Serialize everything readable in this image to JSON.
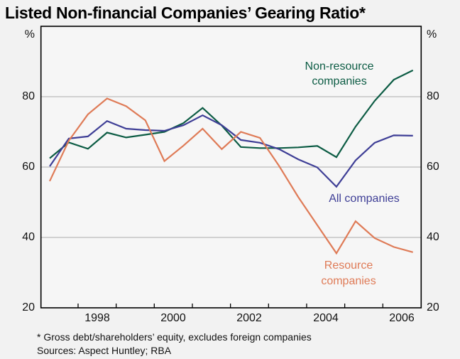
{
  "title": "Listed Non-financial Companies’ Gearing Ratio*",
  "y_axis": {
    "unit_left": "%",
    "unit_right": "%",
    "ticks": [
      "80",
      "60",
      "40",
      "20"
    ]
  },
  "x_axis": {
    "ticks": [
      "1998",
      "2000",
      "2002",
      "2004",
      "2006"
    ]
  },
  "series_labels": {
    "non_resource": {
      "line1": "Non-resource",
      "line2": "companies"
    },
    "all": {
      "label": "All companies"
    },
    "resource": {
      "line1": "Resource",
      "line2": "companies"
    }
  },
  "footnotes": {
    "note": "* Gross debt/shareholders’ equity, excludes foreign companies",
    "sources": "Sources: Aspect Huntley; RBA"
  },
  "colors": {
    "non_resource": "#0c5c44",
    "all": "#3e3e96",
    "resource": "#df7b57",
    "grid": "#bbbbbb",
    "frame": "#000000",
    "plot_bg": "#f6f6f6"
  },
  "chart_data": {
    "type": "line",
    "title": "Listed Non-financial Companies’ Gearing Ratio*",
    "ylabel": "%  (gross debt / shareholders’ equity)",
    "ylim": [
      20,
      100
    ],
    "y_gridlines": [
      40,
      60,
      80
    ],
    "grid": true,
    "legend_position": "inline-annotations",
    "x_unit": "half-year",
    "categories": [
      "1997-H1",
      "1997-H2",
      "1998-H1",
      "1998-H2",
      "1999-H1",
      "1999-H2",
      "2000-H1",
      "2000-H2",
      "2001-H1",
      "2001-H2",
      "2002-H1",
      "2002-H2",
      "2003-H1",
      "2003-H2",
      "2004-H1",
      "2004-H2",
      "2005-H1",
      "2005-H2",
      "2006-H1",
      "2006-H2"
    ],
    "x_tick_years": [
      1998,
      2000,
      2002,
      2004,
      2006
    ],
    "series": [
      {
        "name": "Non-resource companies",
        "color_key": "non_resource",
        "values": [
          62.5,
          67.0,
          65.2,
          69.8,
          68.4,
          69.2,
          70.0,
          72.5,
          76.8,
          71.8,
          65.7,
          65.4,
          65.4,
          65.6,
          66.0,
          62.8,
          71.5,
          78.8,
          84.8,
          87.5
        ]
      },
      {
        "name": "All companies",
        "color_key": "all",
        "values": [
          60.2,
          68.1,
          68.7,
          73.1,
          70.9,
          70.5,
          70.3,
          71.9,
          74.7,
          71.9,
          67.7,
          66.9,
          65.1,
          62.2,
          59.9,
          54.4,
          61.9,
          66.9,
          69.0,
          68.9
        ]
      },
      {
        "name": "Resource companies",
        "color_key": "resource",
        "values": [
          56.0,
          67.5,
          75.0,
          79.5,
          77.3,
          73.3,
          61.7,
          66.1,
          70.9,
          65.1,
          70.0,
          68.3,
          60.3,
          51.5,
          43.5,
          35.5,
          44.6,
          39.8,
          37.3,
          35.8
        ]
      }
    ]
  }
}
